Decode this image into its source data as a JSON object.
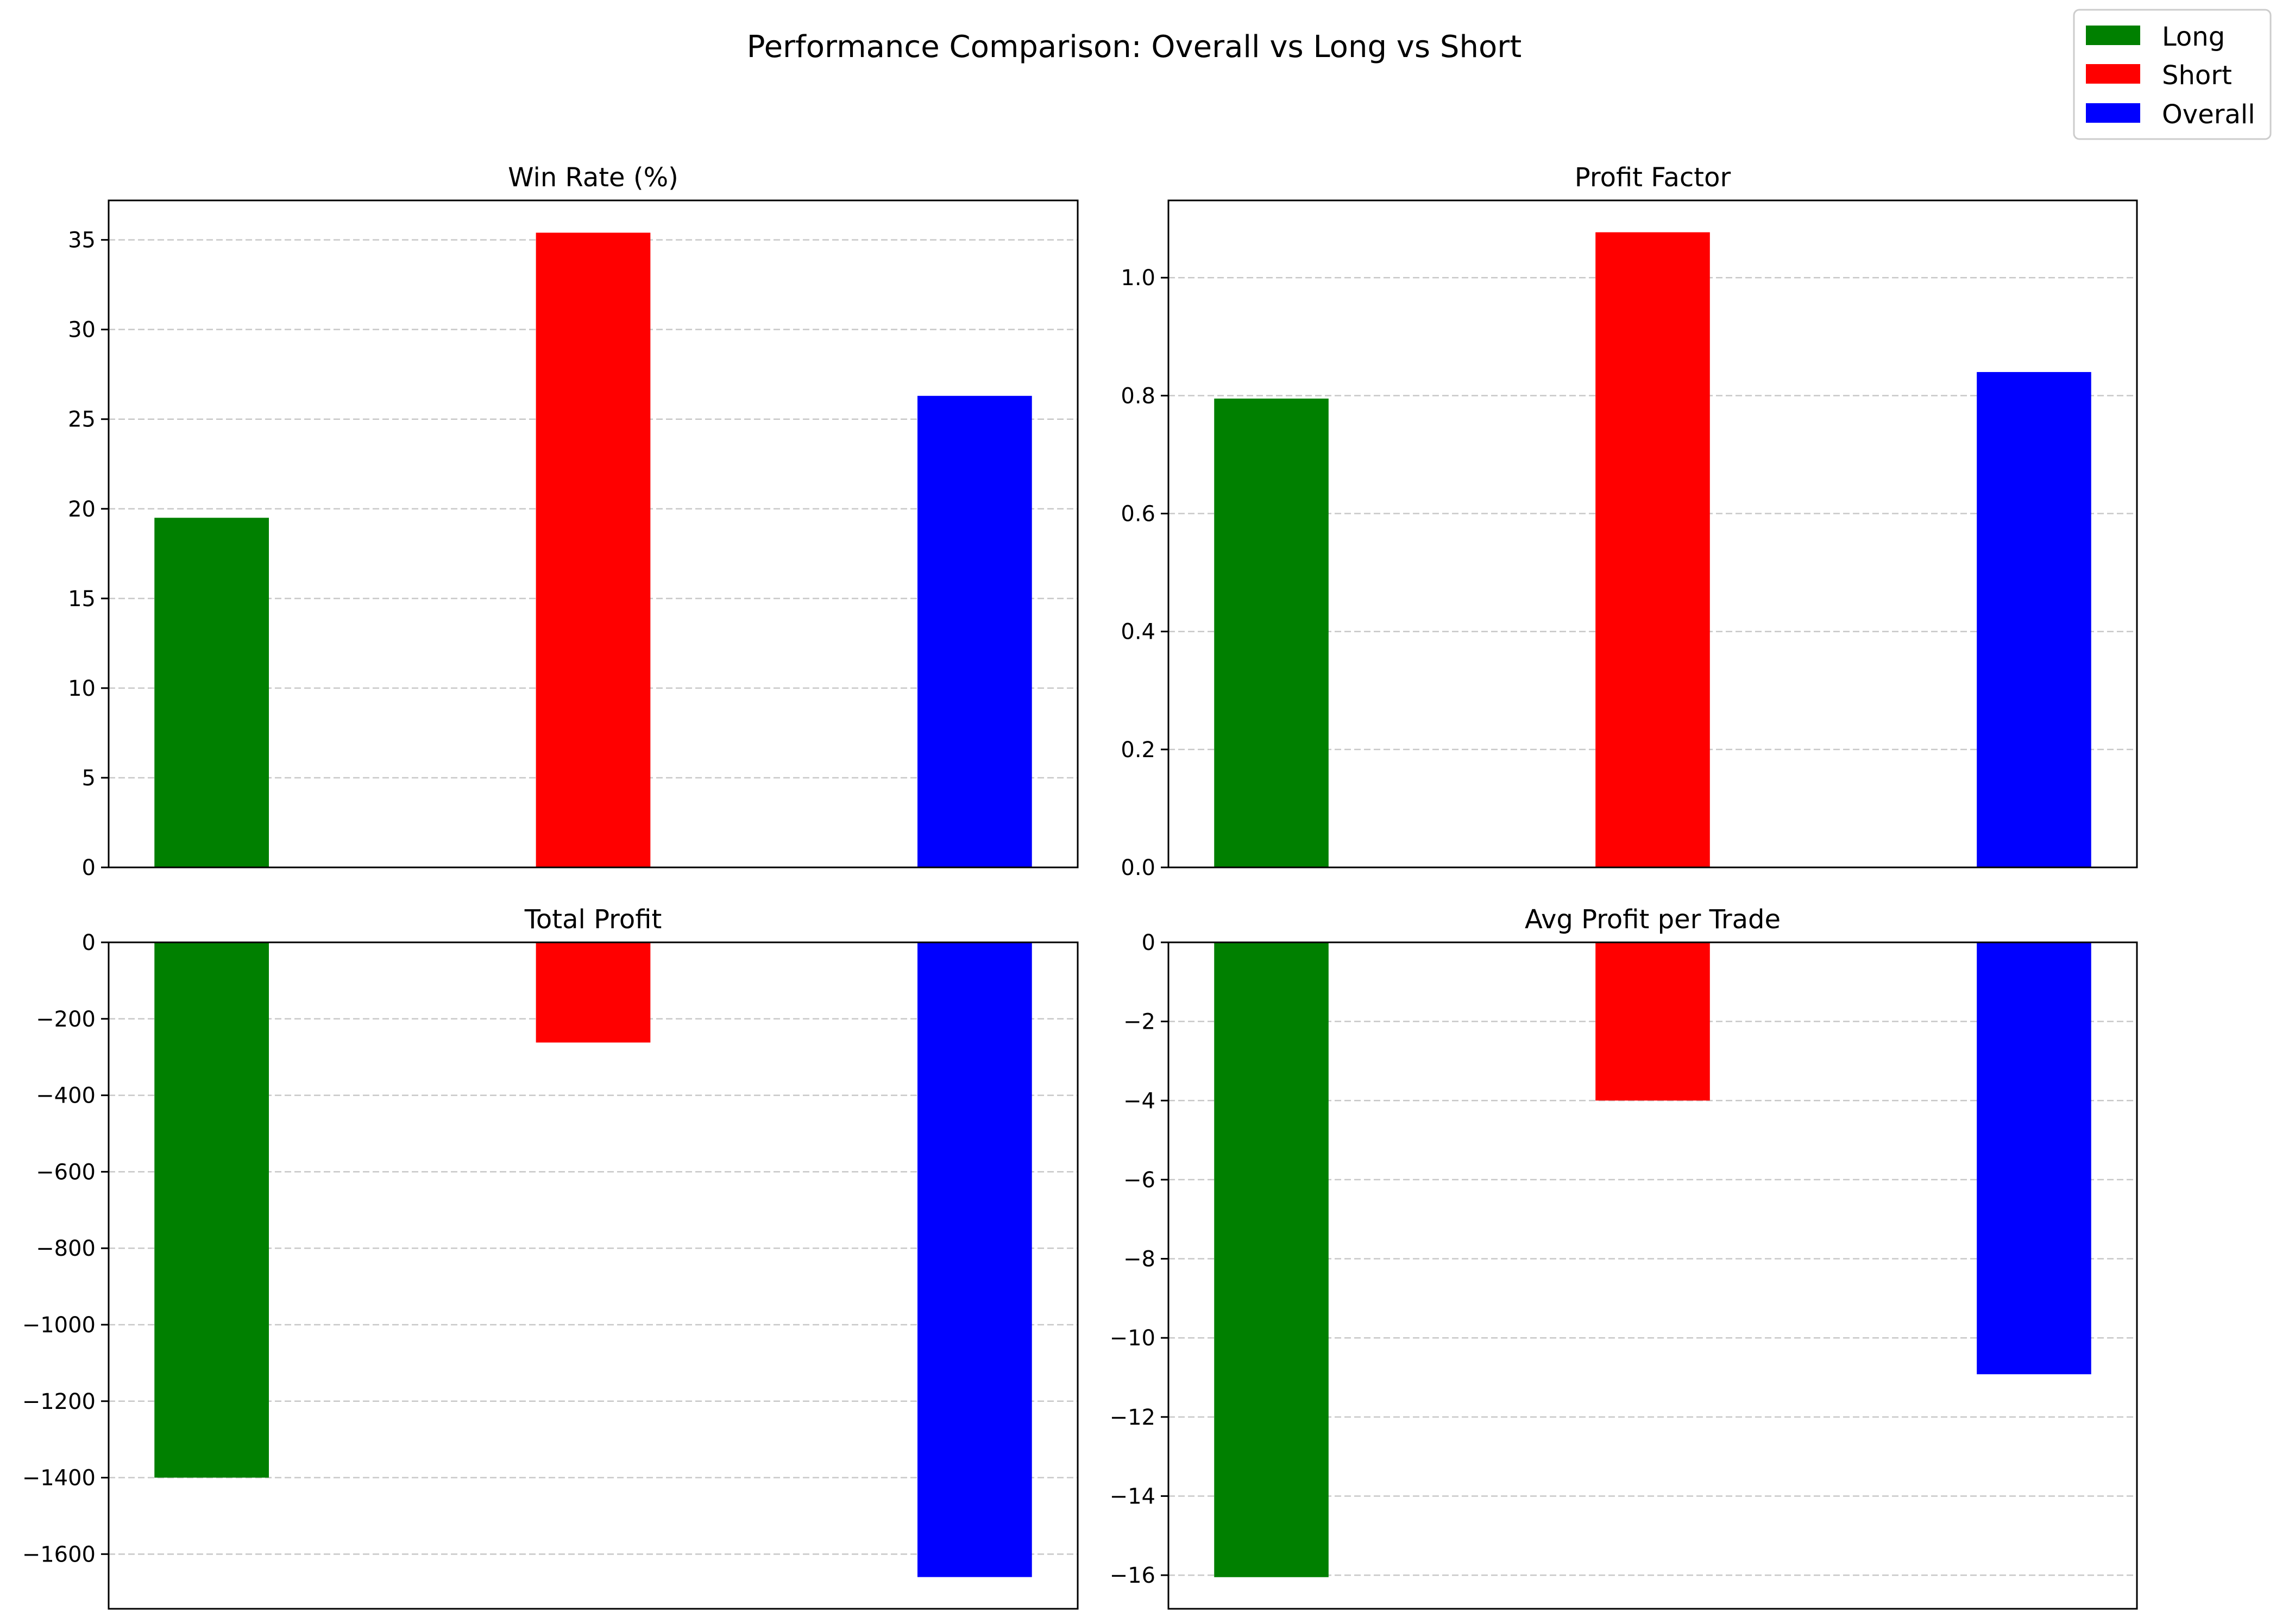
{
  "figure": {
    "title": "Performance Comparison: Overall vs Long vs Short"
  },
  "legend": {
    "placement": "top-right",
    "items": [
      {
        "label": "Long",
        "color": "#008000"
      },
      {
        "label": "Short",
        "color": "#ff0000"
      },
      {
        "label": "Overall",
        "color": "#0000ff"
      }
    ]
  },
  "chart_data": [
    {
      "type": "bar",
      "title": "Win Rate (%)",
      "categories": [
        "Long",
        "Short",
        "Overall"
      ],
      "values": [
        19.5,
        35.4,
        26.3
      ],
      "colors": [
        "#008000",
        "#ff0000",
        "#0000ff"
      ],
      "ylim": [
        0,
        37.2
      ],
      "yticks": [
        0,
        5,
        10,
        15,
        20,
        25,
        30,
        35
      ],
      "grid": "y-dashed",
      "xlabel": "",
      "ylabel": ""
    },
    {
      "type": "bar",
      "title": "Profit Factor",
      "categories": [
        "Long",
        "Short",
        "Overall"
      ],
      "values": [
        0.795,
        1.077,
        0.84
      ],
      "colors": [
        "#008000",
        "#ff0000",
        "#0000ff"
      ],
      "ylim": [
        0,
        1.131
      ],
      "yticks": [
        0.0,
        0.2,
        0.4,
        0.6,
        0.8,
        1.0
      ],
      "ytick_labels": [
        "0.0",
        "0.2",
        "0.4",
        "0.6",
        "0.8",
        "1.0"
      ],
      "grid": "y-dashed",
      "xlabel": "",
      "ylabel": ""
    },
    {
      "type": "bar",
      "title": "Total Profit",
      "categories": [
        "Long",
        "Short",
        "Overall"
      ],
      "values": [
        -1400,
        -262,
        -1660
      ],
      "colors": [
        "#008000",
        "#ff0000",
        "#0000ff"
      ],
      "ylim": [
        -1743,
        0
      ],
      "yticks": [
        0,
        -200,
        -400,
        -600,
        -800,
        -1000,
        -1200,
        -1400,
        -1600
      ],
      "ytick_labels": [
        "0",
        "−200",
        "−400",
        "−600",
        "−800",
        "−1000",
        "−1200",
        "−1400",
        "−1600"
      ],
      "grid": "y-dashed",
      "xlabel": "",
      "ylabel": ""
    },
    {
      "type": "bar",
      "title": "Avg Profit per Trade",
      "categories": [
        "Long",
        "Short",
        "Overall"
      ],
      "values": [
        -16.05,
        -4.0,
        -10.92
      ],
      "colors": [
        "#008000",
        "#ff0000",
        "#0000ff"
      ],
      "ylim": [
        -16.85,
        0
      ],
      "yticks": [
        0,
        -2,
        -4,
        -6,
        -8,
        -10,
        -12,
        -14,
        -16
      ],
      "ytick_labels": [
        "0",
        "−2",
        "−4",
        "−6",
        "−8",
        "−10",
        "−12",
        "−14",
        "−16"
      ],
      "grid": "y-dashed",
      "xlabel": "",
      "ylabel": ""
    }
  ]
}
